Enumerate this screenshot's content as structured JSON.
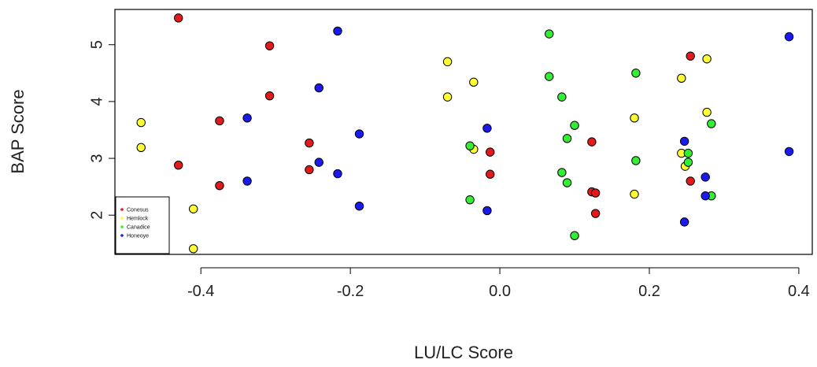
{
  "chart_data": {
    "type": "scatter",
    "title": "",
    "xlabel": "LU/LC Score",
    "ylabel": "BAP Score",
    "xlim": [
      -0.515,
      0.418
    ],
    "ylim": [
      1.31,
      5.62
    ],
    "x_ticks": [
      -0.4,
      -0.2,
      0.0,
      0.2,
      0.4
    ],
    "x_tick_labels": [
      "-0.4",
      "-0.2",
      "0.0",
      "0.2",
      "0.4"
    ],
    "y_ticks": [
      2,
      3,
      4,
      5
    ],
    "y_tick_labels": [
      "2",
      "3",
      "4",
      "5"
    ],
    "grid": false,
    "legend": {
      "placement": "bottom-left"
    },
    "series": [
      {
        "name": "Conesus",
        "color": "#e31a1c",
        "points": [
          [
            -0.43,
            5.47
          ],
          [
            -0.43,
            2.88
          ],
          [
            -0.375,
            3.66
          ],
          [
            -0.375,
            2.52
          ],
          [
            -0.308,
            4.98
          ],
          [
            -0.308,
            4.1
          ],
          [
            -0.255,
            3.27
          ],
          [
            -0.255,
            2.8
          ],
          [
            -0.013,
            3.11
          ],
          [
            -0.013,
            2.72
          ],
          [
            0.123,
            3.29
          ],
          [
            0.123,
            2.41
          ],
          [
            0.128,
            2.39
          ],
          [
            0.128,
            2.03
          ],
          [
            0.255,
            4.8
          ],
          [
            0.255,
            2.6
          ]
        ]
      },
      {
        "name": "Hemlock",
        "color": "#ffff33",
        "points": [
          [
            -0.48,
            3.63
          ],
          [
            -0.48,
            3.19
          ],
          [
            -0.41,
            2.11
          ],
          [
            -0.41,
            1.41
          ],
          [
            -0.07,
            4.7
          ],
          [
            -0.07,
            4.08
          ],
          [
            -0.035,
            4.34
          ],
          [
            -0.035,
            3.16
          ],
          [
            0.18,
            3.71
          ],
          [
            0.18,
            2.37
          ],
          [
            0.243,
            4.41
          ],
          [
            0.243,
            3.09
          ],
          [
            0.248,
            2.86
          ],
          [
            0.277,
            4.75
          ],
          [
            0.277,
            3.81
          ]
        ]
      },
      {
        "name": "Canadice",
        "color": "#33ee33",
        "points": [
          [
            -0.04,
            3.22
          ],
          [
            -0.04,
            2.27
          ],
          [
            0.066,
            5.19
          ],
          [
            0.066,
            4.44
          ],
          [
            0.083,
            4.08
          ],
          [
            0.083,
            2.75
          ],
          [
            0.09,
            3.35
          ],
          [
            0.09,
            2.57
          ],
          [
            0.1,
            3.58
          ],
          [
            0.1,
            1.64
          ],
          [
            0.182,
            4.5
          ],
          [
            0.182,
            2.96
          ],
          [
            0.252,
            3.09
          ],
          [
            0.252,
            2.93
          ],
          [
            0.283,
            3.61
          ],
          [
            0.283,
            2.34
          ]
        ]
      },
      {
        "name": "Honeoye",
        "color": "#1a1aee",
        "points": [
          [
            -0.338,
            3.71
          ],
          [
            -0.338,
            2.6
          ],
          [
            -0.242,
            4.24
          ],
          [
            -0.242,
            2.93
          ],
          [
            -0.217,
            5.24
          ],
          [
            -0.217,
            2.73
          ],
          [
            -0.188,
            3.43
          ],
          [
            -0.188,
            2.16
          ],
          [
            -0.017,
            3.53
          ],
          [
            -0.017,
            2.08
          ],
          [
            0.247,
            3.3
          ],
          [
            0.247,
            1.88
          ],
          [
            0.275,
            2.67
          ],
          [
            0.275,
            2.34
          ],
          [
            0.387,
            5.14
          ],
          [
            0.387,
            3.12
          ]
        ]
      }
    ]
  }
}
